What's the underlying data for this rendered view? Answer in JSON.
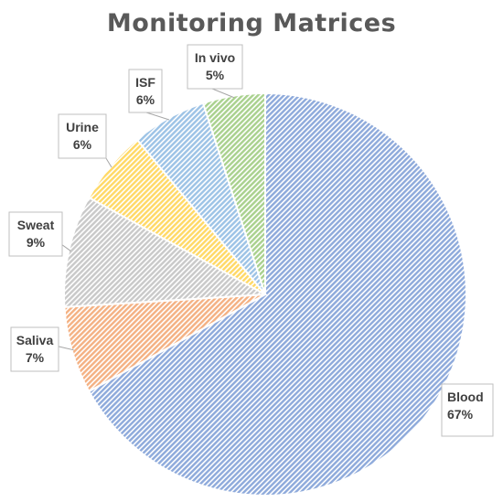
{
  "chart_data": {
    "type": "pie",
    "title": "Monitoring Matrices",
    "slices": [
      {
        "label": "Blood",
        "percent_label": "67%",
        "value": 67,
        "color": "#8eaadb"
      },
      {
        "label": "Saliva",
        "percent_label": "7%",
        "value": 7,
        "color": "#f4b183"
      },
      {
        "label": "Sweat",
        "percent_label": "9%",
        "value": 9,
        "color": "#c9c9c9"
      },
      {
        "label": "Urine",
        "percent_label": "6%",
        "value": 6,
        "color": "#ffd966"
      },
      {
        "label": "ISF",
        "percent_label": "6%",
        "value": 6,
        "color": "#9dc3e6"
      },
      {
        "label": "In vivo",
        "percent_label": "5%",
        "value": 5,
        "color": "#a9d18e"
      }
    ],
    "start_angle_degrees": 0,
    "direction": "clockwise",
    "fill_pattern": "diagonal-hatch",
    "legend": "none"
  }
}
